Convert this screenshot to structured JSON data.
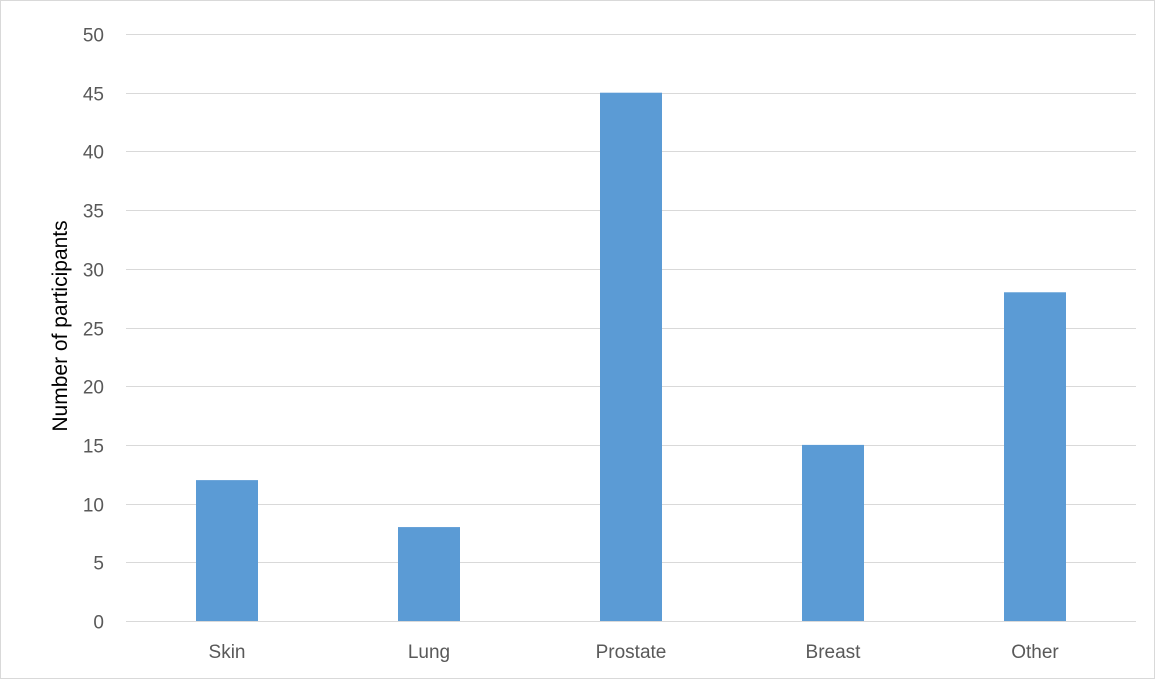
{
  "chart_data": {
    "type": "bar",
    "categories": [
      "Skin",
      "Lung",
      "Prostate",
      "Breast",
      "Other"
    ],
    "values": [
      12,
      8,
      45,
      15,
      28
    ],
    "title": "",
    "xlabel": "",
    "ylabel": "Number of participants",
    "ylim": [
      0,
      50
    ],
    "yticks": [
      0,
      5,
      10,
      15,
      20,
      25,
      30,
      35,
      40,
      45,
      50
    ],
    "grid": true,
    "legend": "none",
    "colors": {
      "bar": "#5b9bd5",
      "grid": "#d9d9d9",
      "tick_text": "#595959"
    }
  }
}
